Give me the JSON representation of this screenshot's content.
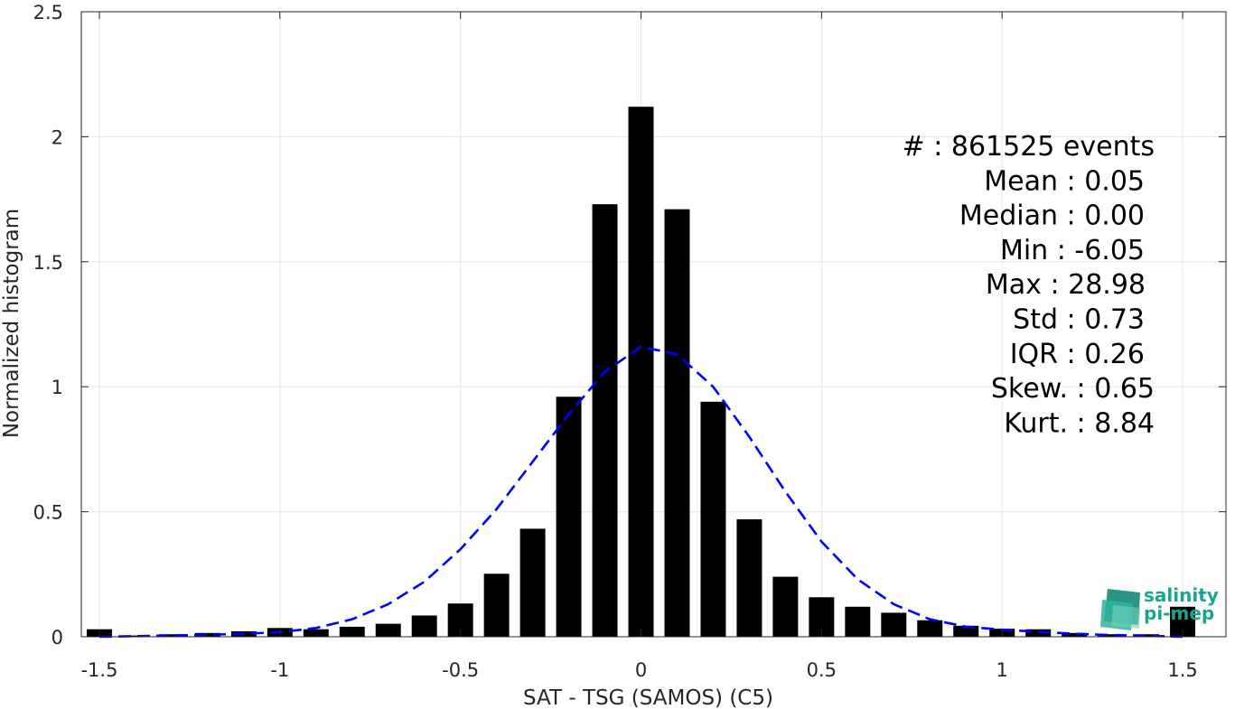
{
  "chart_data": {
    "type": "bar",
    "xlabel": "SAT - TSG (SAMOS) (C5)",
    "ylabel": "Normalized histogram",
    "xlim": [
      -1.55,
      1.62
    ],
    "ylim": [
      0,
      2.5
    ],
    "xticks": [
      -1.5,
      -1,
      -0.5,
      0,
      0.5,
      1,
      1.5
    ],
    "xtick_labels": [
      "-1.5",
      "-1",
      "-0.5",
      "0",
      "0.5",
      "1",
      "1.5"
    ],
    "yticks": [
      0,
      0.5,
      1,
      1.5,
      2,
      2.5
    ],
    "ytick_labels": [
      "0",
      "0.5",
      "1",
      "1.5",
      "2",
      "2.5"
    ],
    "grid": true,
    "bar_width": 0.07,
    "bins": {
      "x": [
        -1.5,
        -1.4,
        -1.3,
        -1.2,
        -1.1,
        -1.0,
        -0.9,
        -0.8,
        -0.7,
        -0.6,
        -0.5,
        -0.4,
        -0.3,
        -0.2,
        -0.1,
        0.0,
        0.1,
        0.2,
        0.3,
        0.4,
        0.5,
        0.6,
        0.7,
        0.8,
        0.9,
        1.0,
        1.1,
        1.2,
        1.3,
        1.4,
        1.5
      ],
      "values": [
        0.03,
        0.005,
        0.01,
        0.015,
        0.022,
        0.035,
        0.03,
        0.04,
        0.052,
        0.085,
        0.133,
        0.252,
        0.432,
        0.96,
        1.73,
        2.12,
        1.71,
        0.94,
        0.47,
        0.24,
        0.158,
        0.12,
        0.096,
        0.066,
        0.044,
        0.032,
        0.03,
        0.015,
        0.01,
        0.01,
        0.12
      ]
    },
    "fit_curve": {
      "style": "dashed",
      "color": "#0000ff",
      "x": [
        -1.5,
        -1.4,
        -1.3,
        -1.2,
        -1.1,
        -1.0,
        -0.9,
        -0.8,
        -0.7,
        -0.6,
        -0.5,
        -0.4,
        -0.3,
        -0.2,
        -0.1,
        0.0,
        0.1,
        0.2,
        0.3,
        0.4,
        0.5,
        0.6,
        0.7,
        0.8,
        0.9,
        1.0,
        1.1,
        1.2,
        1.3,
        1.4,
        1.5
      ],
      "y": [
        0.0,
        0.002,
        0.005,
        0.008,
        0.012,
        0.018,
        0.035,
        0.07,
        0.13,
        0.22,
        0.35,
        0.51,
        0.7,
        0.89,
        1.06,
        1.16,
        1.13,
        1.0,
        0.8,
        0.58,
        0.38,
        0.23,
        0.13,
        0.07,
        0.04,
        0.028,
        0.02,
        0.012,
        0.007,
        0.004,
        0.0
      ]
    },
    "bar_color": "#000000",
    "annotations": [
      "#  : 861525 events",
      "Mean : 0.05",
      "Median : 0.00",
      "Min : -6.05",
      "Max : 28.98",
      "Std : 0.73",
      "IQR : 0.26",
      "Skew. : 0.65",
      "Kurt. : 8.84"
    ]
  },
  "logo": {
    "line1": "salinity",
    "line2": "pi-mep",
    "color": "#1aa58f"
  }
}
